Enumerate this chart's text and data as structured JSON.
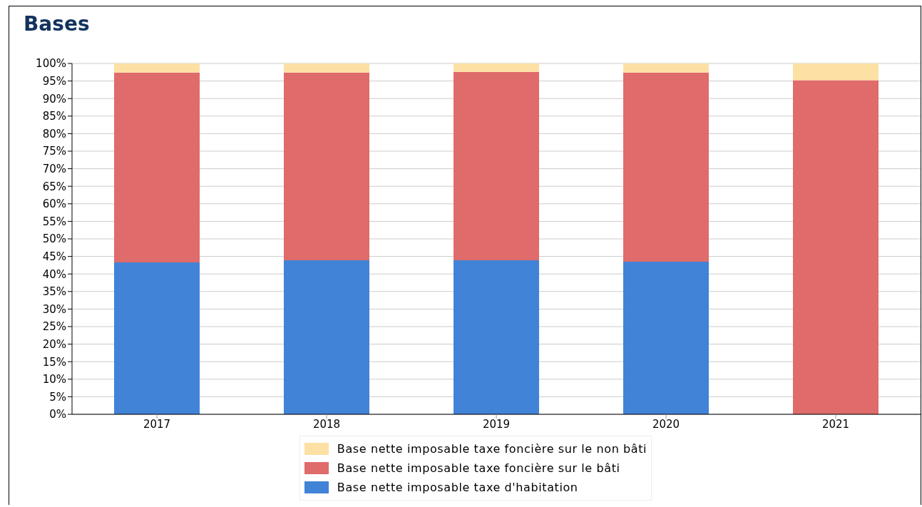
{
  "chart_data": {
    "type": "bar",
    "title": "Bases",
    "stacked": true,
    "categories": [
      "2017",
      "2018",
      "2019",
      "2020",
      "2021"
    ],
    "series": [
      {
        "name": "Base nette imposable taxe d'habitation",
        "color": "#4183d7",
        "values": [
          43.3,
          43.9,
          43.9,
          43.5,
          0
        ]
      },
      {
        "name": "Base nette imposable taxe foncière sur le bâti",
        "color": "#e06b6b",
        "values": [
          54.1,
          53.5,
          53.7,
          53.9,
          95.2
        ]
      },
      {
        "name": "Base nette imposable taxe foncière sur le non bâti",
        "color": "#fde1a4",
        "values": [
          2.6,
          2.6,
          2.4,
          2.6,
          4.8
        ]
      }
    ],
    "ylim": [
      0,
      100
    ],
    "yticks": [
      {
        "value": 0,
        "label": "0%"
      },
      {
        "value": 5,
        "label": "5%"
      },
      {
        "value": 10,
        "label": "10%"
      },
      {
        "value": 15,
        "label": "15%"
      },
      {
        "value": 20,
        "label": "20%"
      },
      {
        "value": 25,
        "label": "25%"
      },
      {
        "value": 30,
        "label": "30%"
      },
      {
        "value": 35,
        "label": "35%"
      },
      {
        "value": 40,
        "label": "40%"
      },
      {
        "value": 45,
        "label": "45%"
      },
      {
        "value": 50,
        "label": "50%"
      },
      {
        "value": 55,
        "label": "55%"
      },
      {
        "value": 60,
        "label": "60%"
      },
      {
        "value": 65,
        "label": "65%"
      },
      {
        "value": 70,
        "label": "70%"
      },
      {
        "value": 75,
        "label": "75%"
      },
      {
        "value": 80,
        "label": "80%"
      },
      {
        "value": 85,
        "label": "85%"
      },
      {
        "value": 90,
        "label": "90%"
      },
      {
        "value": 95,
        "label": "95%"
      },
      {
        "value": 100,
        "label": "100%"
      }
    ],
    "grid": "y",
    "legend": "bottom"
  }
}
